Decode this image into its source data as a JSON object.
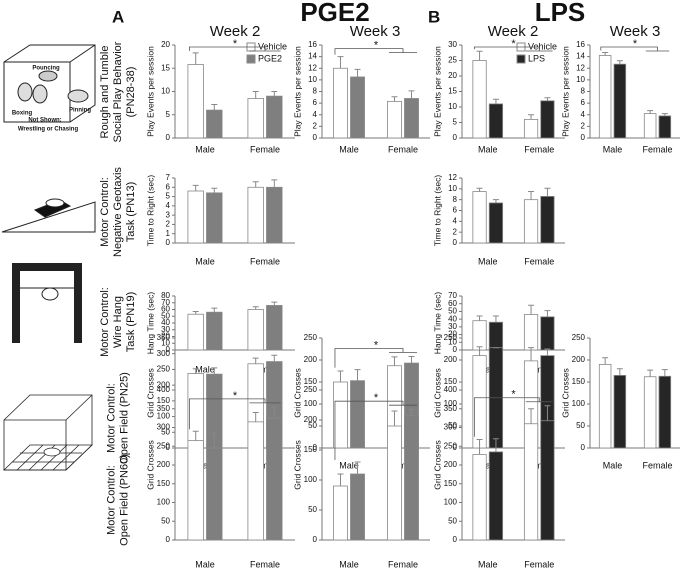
{
  "figure": {
    "groups": [
      {
        "letter": "A",
        "title": "PGE2",
        "weeks": [
          "Week 2",
          "Week 3"
        ]
      },
      {
        "letter": "B",
        "title": "LPS",
        "weeks": [
          "Week 2",
          "Week 3"
        ]
      }
    ]
  },
  "row_labels": [
    [
      "Rough and Tumble",
      "Social Play Behavior",
      "(PN28-38)"
    ],
    [
      "Motor Control:",
      "Negative Geotaxis",
      "Task (PN13)"
    ],
    [
      "Motor Control:",
      "Wire Hang",
      "Task (PN19)"
    ],
    [
      "Motor Control:",
      "Open Field (PN25)"
    ],
    [
      "Motor Control:",
      "Open Field (PN60)"
    ]
  ],
  "illustration_labels": [
    "Pouncing",
    "Boxing",
    "Pinning",
    "Not Shown:",
    "Wrestling or Chasing"
  ],
  "chart_data": [
    {
      "type": "bar",
      "ylabel": "Play Events per session",
      "categories": [
        "Male",
        "Female"
      ],
      "ylim": [
        0,
        20
      ],
      "yticks": [
        0,
        5,
        10,
        15,
        20
      ],
      "legend": "upper-right",
      "annotations": [
        "*"
      ],
      "series": [
        {
          "name": "Vehicle",
          "color": "#ffffff",
          "values": [
            15.8,
            8.5
          ],
          "errors": [
            2.5,
            1.5
          ]
        },
        {
          "name": "PGE2",
          "color": "#7f7f7f",
          "values": [
            6,
            9
          ],
          "errors": [
            1.2,
            1
          ]
        }
      ]
    },
    {
      "type": "bar",
      "ylabel": "Play Events per session",
      "categories": [
        "Male",
        "Female"
      ],
      "ylim": [
        0,
        16
      ],
      "yticks": [
        0,
        2,
        4,
        6,
        8,
        10,
        12,
        14,
        16
      ],
      "annotations": [
        "*"
      ],
      "series": [
        {
          "color": "#ffffff",
          "values": [
            12,
            6.3
          ],
          "errors": [
            2,
            0.8
          ]
        },
        {
          "color": "#7f7f7f",
          "values": [
            10.5,
            6.8
          ],
          "errors": [
            1.3,
            1.3
          ]
        }
      ]
    },
    {
      "type": "bar",
      "ylabel": "Play Events per session",
      "categories": [
        "Male",
        "Female"
      ],
      "ylim": [
        0,
        30
      ],
      "yticks": [
        0,
        5,
        10,
        15,
        20,
        25,
        30
      ],
      "legend": "upper-right",
      "annotations": [
        "*"
      ],
      "series": [
        {
          "name": "Vehicle",
          "color": "#ffffff",
          "values": [
            25,
            6
          ],
          "errors": [
            3,
            1.5
          ]
        },
        {
          "name": "LPS",
          "color": "#262626",
          "values": [
            11,
            12
          ],
          "errors": [
            1.5,
            1
          ]
        }
      ]
    },
    {
      "type": "bar",
      "ylabel": "Play Events per session",
      "categories": [
        "Male",
        "Female"
      ],
      "ylim": [
        0,
        16
      ],
      "yticks": [
        0,
        2,
        4,
        6,
        8,
        10,
        12,
        14,
        16
      ],
      "annotations": [
        "*"
      ],
      "series": [
        {
          "color": "#ffffff",
          "values": [
            14.2,
            4.2
          ],
          "errors": [
            0.5,
            0.5
          ]
        },
        {
          "color": "#262626",
          "values": [
            12.7,
            3.8
          ],
          "errors": [
            0.6,
            0.4
          ]
        }
      ]
    },
    {
      "type": "bar",
      "ylabel": "Time to Right (sec)",
      "categories": [
        "Male",
        "Female"
      ],
      "ylim": [
        0,
        7
      ],
      "yticks": [
        0,
        1,
        2,
        3,
        4,
        5,
        6,
        7
      ],
      "series": [
        {
          "color": "#ffffff",
          "values": [
            5.6,
            6.0
          ],
          "errors": [
            0.6,
            0.6
          ]
        },
        {
          "color": "#7f7f7f",
          "values": [
            5.4,
            6.0
          ],
          "errors": [
            0.5,
            0.8
          ]
        }
      ]
    },
    {
      "type": "bar",
      "ylabel": "Time to Right (sec)",
      "categories": [
        "Male",
        "Female"
      ],
      "ylim": [
        0,
        12
      ],
      "yticks": [
        0,
        2,
        4,
        6,
        8,
        10,
        12
      ],
      "series": [
        {
          "color": "#ffffff",
          "values": [
            9.5,
            8
          ],
          "errors": [
            0.6,
            1.5
          ]
        },
        {
          "color": "#262626",
          "values": [
            7.4,
            8.6
          ],
          "errors": [
            0.6,
            1.5
          ]
        }
      ]
    },
    {
      "type": "bar",
      "ylabel": "Hang Time (sec)",
      "categories": [
        "Male",
        "Female"
      ],
      "ylim": [
        0,
        80
      ],
      "yticks": [
        0,
        10,
        20,
        30,
        40,
        50,
        60,
        70,
        80
      ],
      "series": [
        {
          "color": "#ffffff",
          "values": [
            53,
            60
          ],
          "errors": [
            4,
            4
          ]
        },
        {
          "color": "#7f7f7f",
          "values": [
            56,
            66
          ],
          "errors": [
            6,
            5
          ]
        }
      ]
    },
    {
      "type": "bar",
      "ylabel": "Hang Time (sec)",
      "categories": [
        "Male",
        "Female"
      ],
      "ylim": [
        0,
        70
      ],
      "yticks": [
        0,
        10,
        20,
        30,
        40,
        50,
        60,
        70
      ],
      "series": [
        {
          "color": "#ffffff",
          "values": [
            38,
            46
          ],
          "errors": [
            6,
            12
          ]
        },
        {
          "color": "#262626",
          "values": [
            36,
            43
          ],
          "errors": [
            8,
            8
          ]
        }
      ]
    },
    {
      "type": "bar",
      "ylabel": "Grid Crosses",
      "categories": [
        "Male",
        "Female"
      ],
      "ylim": [
        0,
        350
      ],
      "yticks": [
        0,
        50,
        100,
        150,
        200,
        250,
        300,
        350
      ],
      "series": [
        {
          "color": "#ffffff",
          "values": [
            237,
            268
          ],
          "errors": [
            15,
            18
          ]
        },
        {
          "color": "#7f7f7f",
          "values": [
            235,
            275
          ],
          "errors": [
            20,
            20
          ]
        }
      ]
    },
    {
      "type": "bar",
      "ylabel": "Grid Crosses",
      "categories": [
        "Male",
        "Female"
      ],
      "ylim": [
        0,
        250
      ],
      "yticks": [
        0,
        50,
        100,
        150,
        200,
        250
      ],
      "annotations": [
        "*"
      ],
      "series": [
        {
          "color": "#ffffff",
          "values": [
            150,
            187
          ],
          "errors": [
            25,
            20
          ]
        },
        {
          "color": "#7f7f7f",
          "values": [
            153,
            193
          ],
          "errors": [
            25,
            15
          ]
        }
      ]
    },
    {
      "type": "bar",
      "ylabel": "Grid Crosses",
      "categories": [
        "Male",
        "Female"
      ],
      "ylim": [
        0,
        250
      ],
      "yticks": [
        0,
        50,
        100,
        150,
        200,
        250
      ],
      "series": [
        {
          "color": "#ffffff",
          "values": [
            210,
            198
          ],
          "errors": [
            20,
            30
          ]
        },
        {
          "color": "#262626",
          "values": [
            228,
            210
          ],
          "errors": [
            0,
            15
          ]
        }
      ]
    },
    {
      "type": "bar",
      "ylabel": "Grid Crosses",
      "categories": [
        "Male",
        "Female"
      ],
      "ylim": [
        0,
        250
      ],
      "yticks": [
        0,
        50,
        100,
        150,
        200,
        250
      ],
      "series": [
        {
          "color": "#ffffff",
          "values": [
            190,
            162
          ],
          "errors": [
            15,
            15
          ]
        },
        {
          "color": "#262626",
          "values": [
            165,
            163
          ],
          "errors": [
            15,
            15
          ]
        }
      ]
    },
    {
      "type": "bar",
      "ylabel": "Grid Crosses",
      "categories": [
        "Male",
        "Female"
      ],
      "ylim": [
        0,
        400
      ],
      "yticks": [
        0,
        50,
        100,
        150,
        200,
        250,
        300,
        350,
        400
      ],
      "annotations": [
        "*"
      ],
      "series": [
        {
          "color": "#ffffff",
          "values": [
            265,
            315
          ],
          "errors": [
            25,
            25
          ]
        },
        {
          "color": "#7f7f7f",
          "values": [
            245,
            325
          ],
          "errors": [
            40,
            30
          ]
        }
      ]
    },
    {
      "type": "bar",
      "ylabel": "Grid Crosses",
      "categories": [
        "Male",
        "Female"
      ],
      "ylim": [
        0,
        250
      ],
      "yticks": [
        0,
        50,
        100,
        150,
        200,
        250
      ],
      "annotations": [
        "*"
      ],
      "series": [
        {
          "color": "#ffffff",
          "values": [
            90,
            190
          ],
          "errors": [
            20,
            25
          ]
        },
        {
          "color": "#7f7f7f",
          "values": [
            110,
            208
          ],
          "errors": [
            20,
            10
          ]
        }
      ]
    },
    {
      "type": "bar",
      "ylabel": "Grid Crosses",
      "categories": [
        "Male",
        "Female"
      ],
      "ylim": [
        0,
        400
      ],
      "yticks": [
        0,
        50,
        100,
        150,
        200,
        250,
        300,
        350,
        400
      ],
      "annotations": [
        "*"
      ],
      "series": [
        {
          "color": "#ffffff",
          "values": [
            228,
            310
          ],
          "errors": [
            40,
            40
          ]
        },
        {
          "color": "#262626",
          "values": [
            235,
            318
          ],
          "errors": [
            35,
            40
          ]
        }
      ]
    }
  ]
}
